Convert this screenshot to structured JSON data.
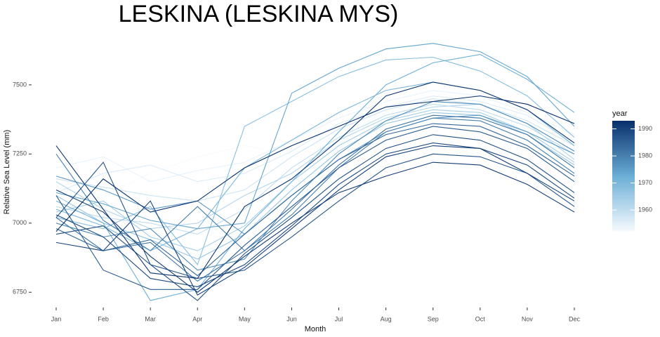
{
  "chart_data": {
    "type": "line",
    "title": "LESKINA (LESKINA MYS)",
    "x_label": "Month",
    "y_label": "Relative Sea Level (mm)",
    "categories": [
      "Jan",
      "Feb",
      "Mar",
      "Apr",
      "May",
      "Jun",
      "Jul",
      "Aug",
      "Sep",
      "Oct",
      "Nov",
      "Dec"
    ],
    "ylim": [
      6710,
      7680
    ],
    "yticks": [
      {
        "value": 6750,
        "label": "6750"
      },
      {
        "value": 7000,
        "label": "7000"
      },
      {
        "value": 7250,
        "label": "7250"
      },
      {
        "value": 7500,
        "label": "7500"
      }
    ],
    "color_scale": {
      "title": "year",
      "lim": [
        1952,
        1993
      ],
      "ticks": [
        1960,
        1970,
        1980,
        1990
      ],
      "colors": [
        "#f7fbff",
        "#6baed6",
        "#08306b"
      ]
    },
    "series": [
      {
        "year": 1952,
        "values": [
          7130,
          7100,
          7180,
          7240,
          7280,
          7250,
          7320,
          7400,
          7440,
          7420,
          7380,
          7300
        ]
      },
      {
        "year": 1954,
        "values": [
          7200,
          7240,
          7150,
          7190,
          7220,
          7300,
          7380,
          7440,
          7480,
          7460,
          7400,
          7320
        ]
      },
      {
        "year": 1956,
        "values": [
          7110,
          7180,
          7210,
          7150,
          7180,
          7260,
          7360,
          7420,
          7460,
          7440,
          7390,
          7290
        ]
      },
      {
        "year": 1958,
        "values": [
          7160,
          7130,
          7100,
          7080,
          7120,
          7240,
          7340,
          7410,
          7450,
          7430,
          7370,
          7280
        ]
      },
      {
        "year": 1960,
        "values": [
          7060,
          7020,
          7000,
          6960,
          7050,
          7200,
          7310,
          7390,
          7430,
          7410,
          7350,
          7250
        ]
      },
      {
        "year": 1962,
        "values": [
          7150,
          7050,
          6980,
          7000,
          7100,
          7180,
          7300,
          7380,
          7420,
          7430,
          7360,
          7230
        ]
      },
      {
        "year": 1964,
        "values": [
          7040,
          7080,
          6950,
          6900,
          6990,
          7150,
          7280,
          7370,
          7410,
          7400,
          7330,
          7220
        ]
      },
      {
        "year": 1966,
        "values": [
          7100,
          7000,
          6940,
          6870,
          6960,
          7120,
          7260,
          7360,
          7400,
          7390,
          7320,
          7210
        ]
      },
      {
        "year": 1968,
        "values": [
          7020,
          6980,
          7060,
          6850,
          7350,
          7440,
          7530,
          7590,
          7600,
          7550,
          7460,
          7310
        ]
      },
      {
        "year": 1970,
        "values": [
          7050,
          6990,
          6900,
          6980,
          7200,
          7300,
          7400,
          7480,
          7510,
          7480,
          7410,
          7280
        ]
      },
      {
        "year": 1972,
        "values": [
          7080,
          7000,
          6720,
          6760,
          6980,
          7150,
          7330,
          7500,
          7580,
          7610,
          7520,
          7400
        ]
      },
      {
        "year": 1974,
        "values": [
          7110,
          7070,
          7010,
          6980,
          7000,
          7470,
          7560,
          7630,
          7650,
          7620,
          7530,
          7350
        ]
      },
      {
        "year": 1976,
        "values": [
          7170,
          7120,
          7050,
          7080,
          6960,
          7100,
          7230,
          7330,
          7380,
          7390,
          7330,
          7250
        ]
      },
      {
        "year": 1978,
        "values": [
          7000,
          6950,
          6980,
          6830,
          6870,
          7080,
          7250,
          7370,
          7440,
          7430,
          7360,
          7260
        ]
      },
      {
        "year": 1980,
        "values": [
          7250,
          7010,
          6900,
          7060,
          6900,
          7030,
          7200,
          7330,
          7380,
          7370,
          7300,
          7180
        ]
      },
      {
        "year": 1982,
        "values": [
          7020,
          6900,
          6930,
          6790,
          6900,
          7050,
          7210,
          7340,
          7390,
          7380,
          7320,
          7200
        ]
      },
      {
        "year": 1984,
        "values": [
          6980,
          6900,
          6940,
          6810,
          6960,
          7100,
          7230,
          7320,
          7360,
          7350,
          7280,
          7170
        ]
      },
      {
        "year": 1986,
        "values": [
          7100,
          6830,
          6760,
          6760,
          6920,
          7060,
          7200,
          7300,
          7350,
          7330,
          7270,
          7150
        ]
      },
      {
        "year": 1987,
        "values": [
          7020,
          7220,
          6850,
          6800,
          6830,
          6950,
          7080,
          7200,
          7250,
          7240,
          7180,
          7060
        ]
      },
      {
        "year": 1988,
        "values": [
          6960,
          6990,
          6850,
          6720,
          6890,
          7020,
          7160,
          7270,
          7320,
          7300,
          7230,
          7110
        ]
      },
      {
        "year": 1989,
        "values": [
          7030,
          6950,
          6800,
          6770,
          6850,
          6990,
          7140,
          7250,
          7290,
          7270,
          7210,
          7090
        ]
      },
      {
        "year": 1990,
        "values": [
          6930,
          6900,
          7080,
          6740,
          6840,
          6980,
          7120,
          7240,
          7280,
          7270,
          7180,
          7080
        ]
      },
      {
        "year": 1991,
        "values": [
          7120,
          7040,
          6880,
          6750,
          6880,
          7000,
          7110,
          7170,
          7220,
          7210,
          7140,
          7040
        ]
      },
      {
        "year": 1992,
        "values": [
          7280,
          7050,
          6820,
          6800,
          7060,
          7160,
          7300,
          7460,
          7510,
          7480,
          7410,
          7290
        ]
      },
      {
        "year": 1993,
        "values": [
          6970,
          7160,
          7040,
          7080,
          7200,
          7280,
          7350,
          7420,
          7440,
          7460,
          7430,
          7360
        ]
      }
    ]
  }
}
